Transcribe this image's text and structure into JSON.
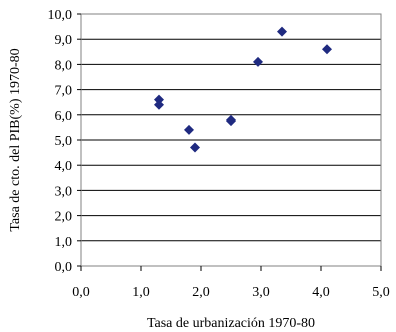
{
  "chart_data": {
    "type": "scatter",
    "title": "",
    "xlabel": "Tasa de urbanización 1970-80",
    "ylabel": "Tasa de cto. del PIB(%) 1970-80",
    "xlim": [
      0,
      5
    ],
    "ylim": [
      0,
      10
    ],
    "x_ticks": [
      "0,0",
      "1,0",
      "2,0",
      "3,0",
      "4,0",
      "5,0"
    ],
    "y_ticks": [
      "0,0",
      "1,0",
      "2,0",
      "3,0",
      "4,0",
      "5,0",
      "6,0",
      "7,0",
      "8,0",
      "9,0",
      "10,0"
    ],
    "grid": "horizontal",
    "legend": "none",
    "marker": "diamond",
    "marker_color": "#1f2a80",
    "points": [
      {
        "x": 1.3,
        "y": 6.6
      },
      {
        "x": 1.3,
        "y": 6.4
      },
      {
        "x": 1.8,
        "y": 5.4
      },
      {
        "x": 1.9,
        "y": 4.7
      },
      {
        "x": 2.5,
        "y": 5.8
      },
      {
        "x": 2.5,
        "y": 5.75
      },
      {
        "x": 2.95,
        "y": 8.1
      },
      {
        "x": 3.35,
        "y": 9.3
      },
      {
        "x": 4.1,
        "y": 8.6
      }
    ]
  }
}
